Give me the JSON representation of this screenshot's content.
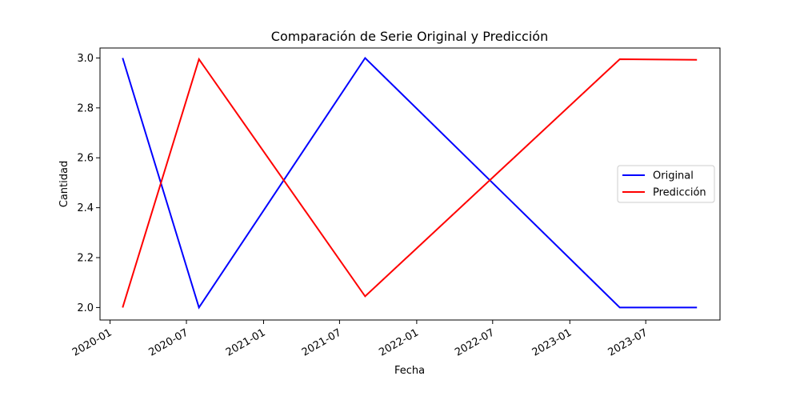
{
  "chart_data": {
    "type": "line",
    "title": "Comparación de Serie Original y Predicción",
    "xlabel": "Fecha",
    "ylabel": "Cantidad",
    "xlim": [
      "2019-12-08",
      "2023-12-25"
    ],
    "ylim": [
      1.95,
      3.04
    ],
    "x_ticks": [
      "2020-01",
      "2020-07",
      "2021-01",
      "2021-07",
      "2022-01",
      "2022-07",
      "2023-01",
      "2023-07"
    ],
    "y_ticks": [
      "2.0",
      "2.2",
      "2.4",
      "2.6",
      "2.8",
      "3.0"
    ],
    "grid": false,
    "legend_position": "center-right",
    "series": [
      {
        "name": "Original",
        "color": "#0000ff",
        "points": [
          {
            "x": "2020-01-31",
            "y": 3.0
          },
          {
            "x": "2020-07-31",
            "y": 2.0
          },
          {
            "x": "2021-08-31",
            "y": 3.0
          },
          {
            "x": "2023-04-30",
            "y": 2.0
          },
          {
            "x": "2023-10-31",
            "y": 2.0
          }
        ]
      },
      {
        "name": "Predicción",
        "color": "#ff0000",
        "points": [
          {
            "x": "2020-01-31",
            "y": 2.0
          },
          {
            "x": "2020-07-31",
            "y": 2.995
          },
          {
            "x": "2021-08-31",
            "y": 2.045
          },
          {
            "x": "2023-04-30",
            "y": 2.995
          },
          {
            "x": "2023-10-31",
            "y": 2.993
          }
        ]
      }
    ]
  }
}
